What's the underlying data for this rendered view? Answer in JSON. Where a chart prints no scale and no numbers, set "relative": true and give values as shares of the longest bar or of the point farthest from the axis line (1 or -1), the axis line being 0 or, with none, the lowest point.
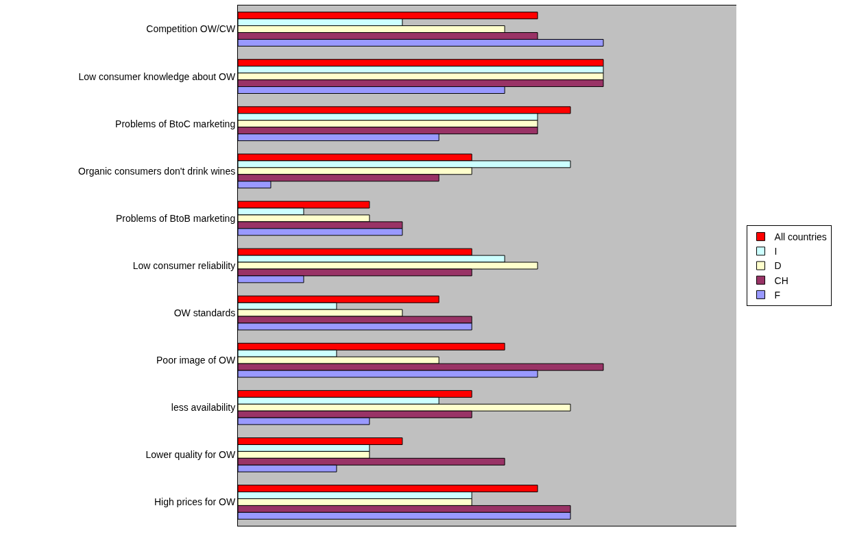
{
  "chart_data": {
    "type": "bar",
    "orientation": "horizontal",
    "relative": true,
    "legend": "right",
    "grid": false,
    "categories": [
      "Competition OW/CW",
      "Low consumer knowledge about OW",
      "Problems of BtoC marketing",
      "Organic consumers don't drink wines",
      "Problems of BtoB marketing",
      "Low consumer reliability",
      "OW standards",
      "Poor image of OW",
      "less availability",
      "Lower quality for OW",
      "High prices for OW"
    ],
    "series": [
      {
        "name": "All countries",
        "color": "#ff0000",
        "values": [
          0.82,
          1,
          0.91,
          0.64,
          0.36,
          0.64,
          0.55,
          0.73,
          0.64,
          0.45,
          0.82
        ]
      },
      {
        "name": "I",
        "color": "#ccffff",
        "values": [
          0.45,
          1,
          0.82,
          0.91,
          0.18,
          0.73,
          0.27,
          0.27,
          0.55,
          0.36,
          0.64
        ]
      },
      {
        "name": "D",
        "color": "#ffffcc",
        "values": [
          0.73,
          1,
          0.82,
          0.64,
          0.36,
          0.82,
          0.45,
          0.55,
          0.91,
          0.36,
          0.64
        ]
      },
      {
        "name": "CH",
        "color": "#993366",
        "values": [
          0.82,
          1,
          0.82,
          0.55,
          0.45,
          0.64,
          0.64,
          1,
          0.64,
          0.73,
          0.91
        ]
      },
      {
        "name": "F",
        "color": "#9999ff",
        "values": [
          1,
          0.73,
          0.55,
          0.09,
          0.45,
          0.18,
          0.64,
          0.82,
          0.36,
          0.27,
          0.91
        ]
      }
    ]
  }
}
